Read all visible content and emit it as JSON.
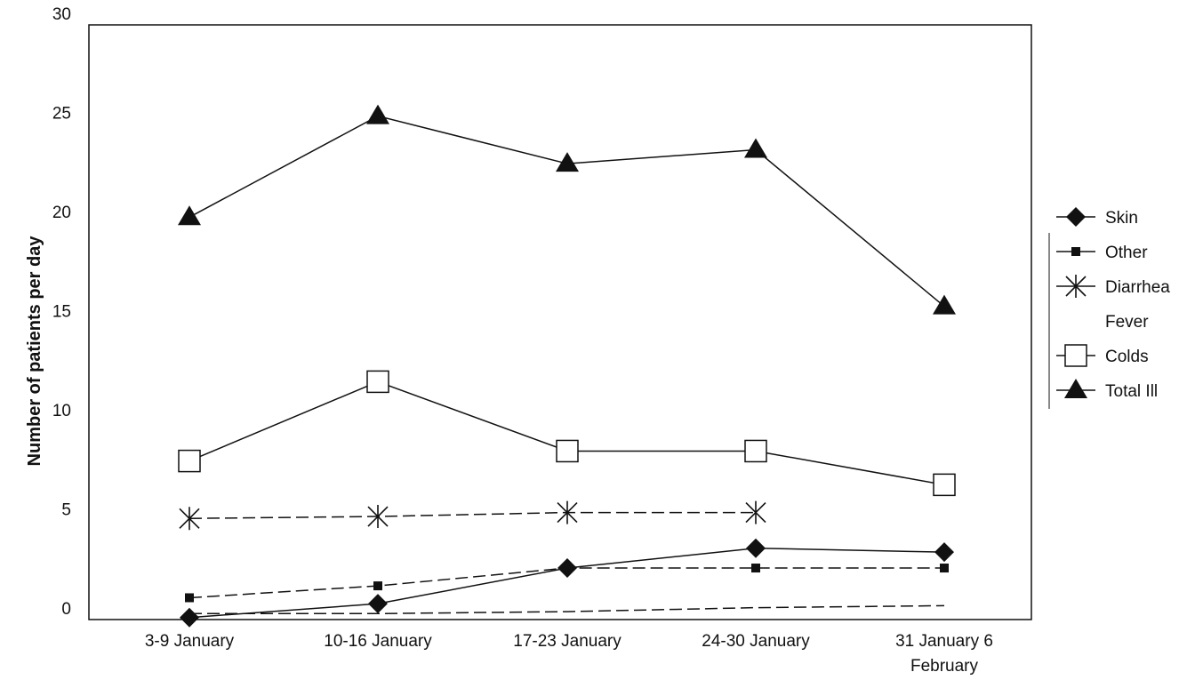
{
  "chart_data": {
    "type": "line",
    "title": "",
    "xlabel": "",
    "ylabel": "Number of patients per day",
    "ylim": [
      0,
      30
    ],
    "yticks": [
      0,
      5,
      10,
      15,
      20,
      25,
      30
    ],
    "grid": false,
    "legend_position": "right",
    "categories": [
      [
        "3-9 January"
      ],
      [
        "10-16 January"
      ],
      [
        "17-23 January"
      ],
      [
        "24-30 January"
      ],
      [
        "31 January 6",
        "February"
      ]
    ],
    "series": [
      {
        "name": "Skin",
        "marker": "diamond",
        "dash": "solid",
        "values": [
          0.1,
          0.8,
          2.6,
          3.6,
          3.4
        ]
      },
      {
        "name": "Other",
        "marker": "square-filled",
        "dash": "dashed",
        "values": [
          1.1,
          1.7,
          2.6,
          2.6,
          2.6
        ]
      },
      {
        "name": "Diarrhea",
        "marker": "asterisk",
        "dash": "dashed",
        "values": [
          5.1,
          5.2,
          5.4,
          5.4,
          null
        ]
      },
      {
        "name": "Fever",
        "marker": "none",
        "dash": "dashed",
        "values": [
          0.3,
          0.3,
          0.4,
          0.6,
          0.7
        ]
      },
      {
        "name": "Colds",
        "marker": "square-open",
        "dash": "solid",
        "values": [
          8.0,
          12.0,
          8.5,
          8.5,
          6.8
        ]
      },
      {
        "name": "Total Ill",
        "marker": "triangle",
        "dash": "solid",
        "values": [
          20.3,
          25.4,
          23.0,
          23.7,
          15.8
        ]
      }
    ]
  }
}
